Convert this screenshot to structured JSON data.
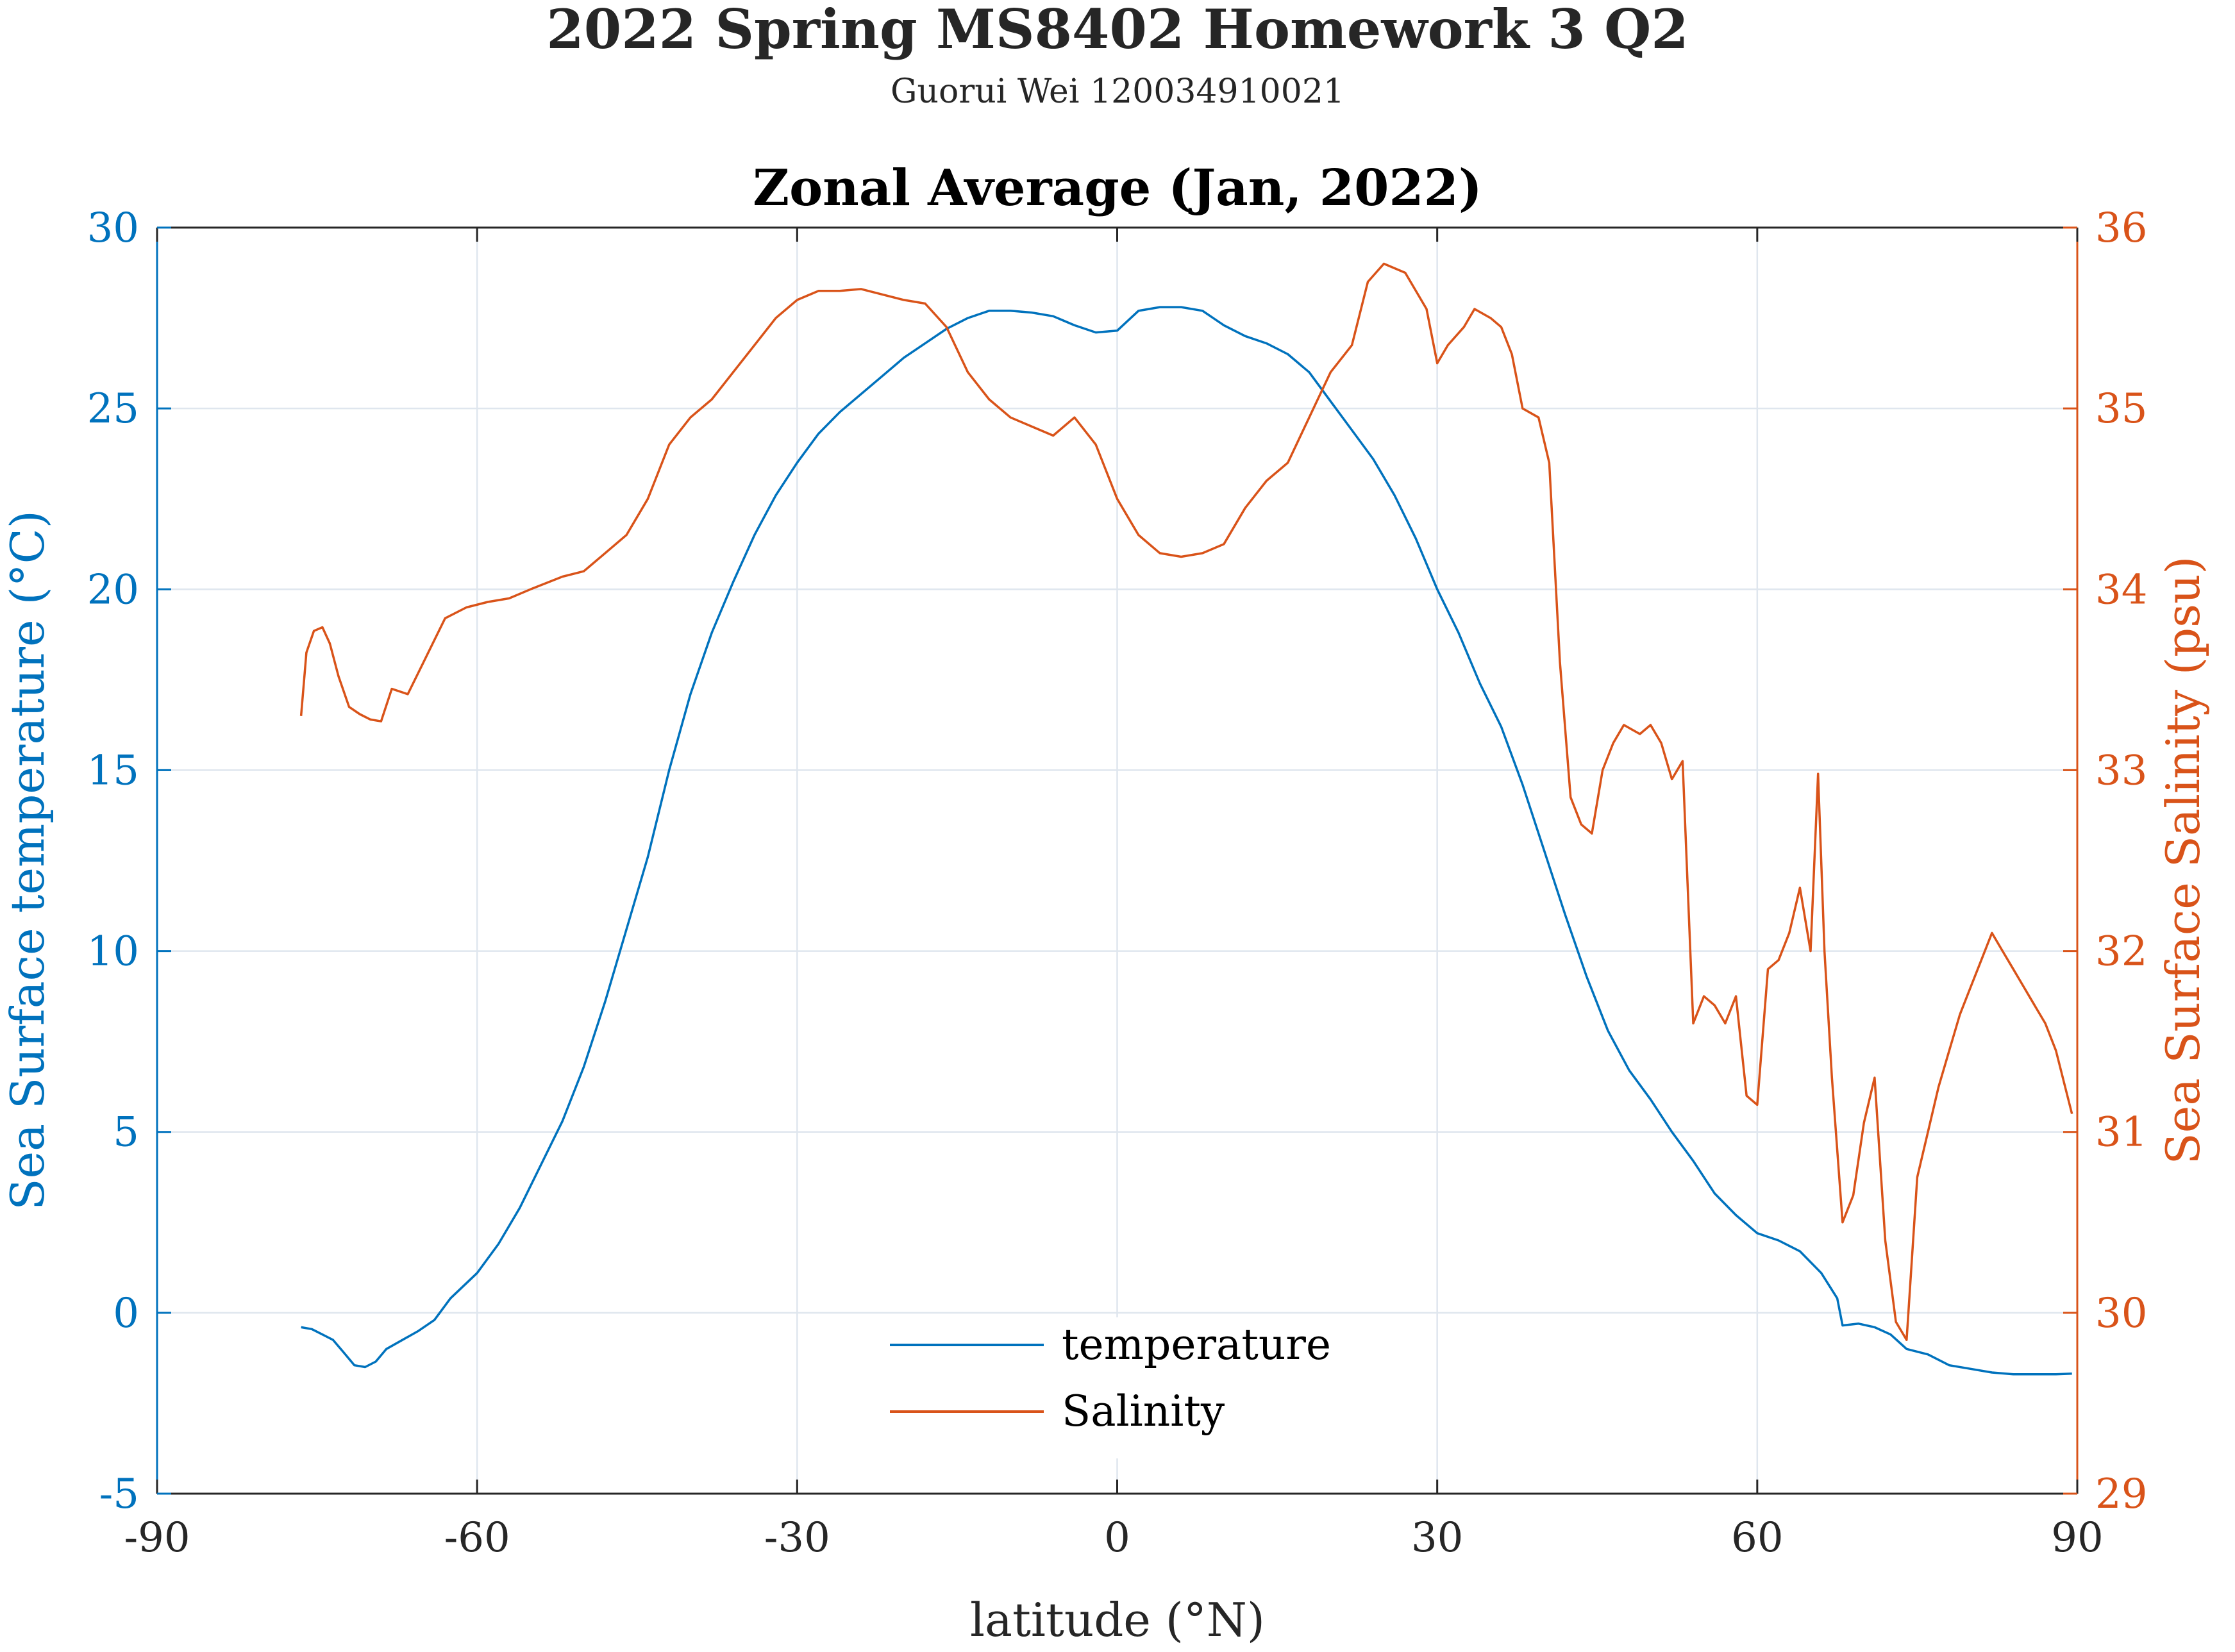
{
  "figure": {
    "title": "2022 Spring MS8402 Homework 3 Q2",
    "subtitle": "Guorui Wei 120034910021"
  },
  "chart_data": {
    "type": "line",
    "title": "Zonal Average (Jan, 2022)",
    "xlabel": "latitude (°N)",
    "ylabel": "Sea Surface temperature (°C)",
    "y2label": "Sea Surface Salinity (psu)",
    "xlim": [
      -90,
      90
    ],
    "ylim": [
      -5,
      30
    ],
    "y2lim": [
      29,
      36
    ],
    "xticks": [
      -90,
      -60,
      -30,
      0,
      30,
      60,
      90
    ],
    "yticks": [
      -5,
      0,
      5,
      10,
      15,
      20,
      25,
      30
    ],
    "y2ticks": [
      29,
      30,
      31,
      32,
      33,
      34,
      35,
      36
    ],
    "grid": true,
    "legend_position": "bottom-center",
    "colors": {
      "temperature": "#0072BD",
      "salinity": "#D95319",
      "grid": "#dfe6ee",
      "axis": "#262626"
    },
    "series": [
      {
        "name": "temperature",
        "axis": "left",
        "points": [
          [
            -76.5,
            -0.4
          ],
          [
            -75.5,
            -0.45
          ],
          [
            -74.5,
            -0.6
          ],
          [
            -73.5,
            -0.75
          ],
          [
            -72.5,
            -1.1
          ],
          [
            -71.5,
            -1.45
          ],
          [
            -70.5,
            -1.5
          ],
          [
            -69.5,
            -1.35
          ],
          [
            -68.5,
            -1.0
          ],
          [
            -67,
            -0.75
          ],
          [
            -65.5,
            -0.5
          ],
          [
            -64,
            -0.2
          ],
          [
            -62.5,
            0.4
          ],
          [
            -60,
            1.1
          ],
          [
            -58,
            1.9
          ],
          [
            -56,
            2.9
          ],
          [
            -54,
            4.1
          ],
          [
            -52,
            5.3
          ],
          [
            -50,
            6.8
          ],
          [
            -48,
            8.6
          ],
          [
            -46,
            10.6
          ],
          [
            -44,
            12.6
          ],
          [
            -42,
            15.0
          ],
          [
            -40,
            17.1
          ],
          [
            -38,
            18.8
          ],
          [
            -36,
            20.2
          ],
          [
            -34,
            21.5
          ],
          [
            -32,
            22.6
          ],
          [
            -30,
            23.5
          ],
          [
            -28,
            24.3
          ],
          [
            -26,
            24.9
          ],
          [
            -24,
            25.4
          ],
          [
            -22,
            25.9
          ],
          [
            -20,
            26.4
          ],
          [
            -18,
            26.8
          ],
          [
            -16,
            27.2
          ],
          [
            -14,
            27.5
          ],
          [
            -12,
            27.7
          ],
          [
            -10,
            27.7
          ],
          [
            -8,
            27.65
          ],
          [
            -6,
            27.55
          ],
          [
            -4,
            27.3
          ],
          [
            -2,
            27.1
          ],
          [
            0,
            27.15
          ],
          [
            2,
            27.7
          ],
          [
            4,
            27.8
          ],
          [
            6,
            27.8
          ],
          [
            8,
            27.7
          ],
          [
            10,
            27.3
          ],
          [
            12,
            27.0
          ],
          [
            14,
            26.8
          ],
          [
            16,
            26.5
          ],
          [
            18,
            26.0
          ],
          [
            20,
            25.2
          ],
          [
            22,
            24.4
          ],
          [
            24,
            23.6
          ],
          [
            26,
            22.6
          ],
          [
            28,
            21.4
          ],
          [
            30,
            20.0
          ],
          [
            32,
            18.8
          ],
          [
            34,
            17.4
          ],
          [
            36,
            16.2
          ],
          [
            38,
            14.6
          ],
          [
            40,
            12.8
          ],
          [
            42,
            11.0
          ],
          [
            44,
            9.3
          ],
          [
            46,
            7.8
          ],
          [
            48,
            6.7
          ],
          [
            50,
            5.9
          ],
          [
            52,
            5.0
          ],
          [
            54,
            4.2
          ],
          [
            56,
            3.3
          ],
          [
            58,
            2.7
          ],
          [
            60,
            2.2
          ],
          [
            62,
            2.0
          ],
          [
            64,
            1.7
          ],
          [
            66,
            1.1
          ],
          [
            67.5,
            0.4
          ],
          [
            68,
            -0.35
          ],
          [
            69.5,
            -0.3
          ],
          [
            71,
            -0.4
          ],
          [
            72.5,
            -0.6
          ],
          [
            74,
            -1.0
          ],
          [
            76,
            -1.15
          ],
          [
            78,
            -1.45
          ],
          [
            80,
            -1.55
          ],
          [
            82,
            -1.65
          ],
          [
            84,
            -1.7
          ],
          [
            86,
            -1.7
          ],
          [
            88,
            -1.7
          ],
          [
            89.5,
            -1.68
          ]
        ]
      },
      {
        "name": "Salinity",
        "axis": "right",
        "points": [
          [
            -76.5,
            33.3
          ],
          [
            -76,
            33.65
          ],
          [
            -75.3,
            33.77
          ],
          [
            -74.5,
            33.79
          ],
          [
            -73.8,
            33.7
          ],
          [
            -73,
            33.52
          ],
          [
            -72,
            33.35
          ],
          [
            -71,
            33.31
          ],
          [
            -70,
            33.28
          ],
          [
            -69,
            33.27
          ],
          [
            -68,
            33.45
          ],
          [
            -66.5,
            33.42
          ],
          [
            -65,
            33.6
          ],
          [
            -63,
            33.84
          ],
          [
            -61,
            33.9
          ],
          [
            -59,
            33.93
          ],
          [
            -57,
            33.95
          ],
          [
            -55,
            34.0
          ],
          [
            -52,
            34.07
          ],
          [
            -50,
            34.1
          ],
          [
            -48,
            34.2
          ],
          [
            -46,
            34.3
          ],
          [
            -44,
            34.5
          ],
          [
            -42,
            34.8
          ],
          [
            -40,
            34.95
          ],
          [
            -38,
            35.05
          ],
          [
            -36,
            35.2
          ],
          [
            -34,
            35.35
          ],
          [
            -32,
            35.5
          ],
          [
            -30,
            35.6
          ],
          [
            -28,
            35.65
          ],
          [
            -26,
            35.65
          ],
          [
            -24,
            35.66
          ],
          [
            -22,
            35.63
          ],
          [
            -20,
            35.6
          ],
          [
            -18,
            35.58
          ],
          [
            -16,
            35.45
          ],
          [
            -14,
            35.2
          ],
          [
            -12,
            35.05
          ],
          [
            -10,
            34.95
          ],
          [
            -8,
            34.9
          ],
          [
            -6,
            34.85
          ],
          [
            -4,
            34.95
          ],
          [
            -2,
            34.8
          ],
          [
            0,
            34.5
          ],
          [
            2,
            34.3
          ],
          [
            4,
            34.2
          ],
          [
            6,
            34.18
          ],
          [
            8,
            34.2
          ],
          [
            10,
            34.25
          ],
          [
            12,
            34.45
          ],
          [
            14,
            34.6
          ],
          [
            16,
            34.7
          ],
          [
            18,
            34.95
          ],
          [
            20,
            35.2
          ],
          [
            22,
            35.35
          ],
          [
            23.5,
            35.7
          ],
          [
            25,
            35.8
          ],
          [
            27,
            35.75
          ],
          [
            29,
            35.55
          ],
          [
            30,
            35.25
          ],
          [
            31,
            35.35
          ],
          [
            32.5,
            35.45
          ],
          [
            33.5,
            35.55
          ],
          [
            35,
            35.5
          ],
          [
            36,
            35.45
          ],
          [
            37,
            35.3
          ],
          [
            38,
            35.0
          ],
          [
            39.5,
            34.95
          ],
          [
            40.5,
            34.7
          ],
          [
            41.5,
            33.6
          ],
          [
            42.5,
            32.85
          ],
          [
            43.5,
            32.7
          ],
          [
            44.5,
            32.65
          ],
          [
            45.5,
            33.0
          ],
          [
            46.5,
            33.15
          ],
          [
            47.5,
            33.25
          ],
          [
            49,
            33.2
          ],
          [
            50,
            33.25
          ],
          [
            51,
            33.15
          ],
          [
            52,
            32.95
          ],
          [
            53,
            33.05
          ],
          [
            54,
            31.6
          ],
          [
            55,
            31.75
          ],
          [
            56,
            31.7
          ],
          [
            57,
            31.6
          ],
          [
            58,
            31.75
          ],
          [
            59,
            31.2
          ],
          [
            60,
            31.15
          ],
          [
            61,
            31.9
          ],
          [
            62,
            31.95
          ],
          [
            63,
            32.1
          ],
          [
            64,
            32.35
          ],
          [
            65,
            32.0
          ],
          [
            65.7,
            32.98
          ],
          [
            66.3,
            32.0
          ],
          [
            67,
            31.3
          ],
          [
            68,
            30.5
          ],
          [
            69,
            30.65
          ],
          [
            70,
            31.05
          ],
          [
            71,
            31.3
          ],
          [
            72,
            30.4
          ],
          [
            73,
            29.95
          ],
          [
            74,
            29.85
          ],
          [
            75,
            30.75
          ],
          [
            76,
            31.0
          ],
          [
            77,
            31.25
          ],
          [
            78,
            31.45
          ],
          [
            79,
            31.65
          ],
          [
            80,
            31.8
          ],
          [
            81,
            31.95
          ],
          [
            82,
            32.1
          ],
          [
            83,
            32.0
          ],
          [
            84,
            31.9
          ],
          [
            85,
            31.8
          ],
          [
            86,
            31.7
          ],
          [
            87,
            31.6
          ],
          [
            88,
            31.45
          ],
          [
            89.5,
            31.1
          ]
        ]
      }
    ]
  }
}
